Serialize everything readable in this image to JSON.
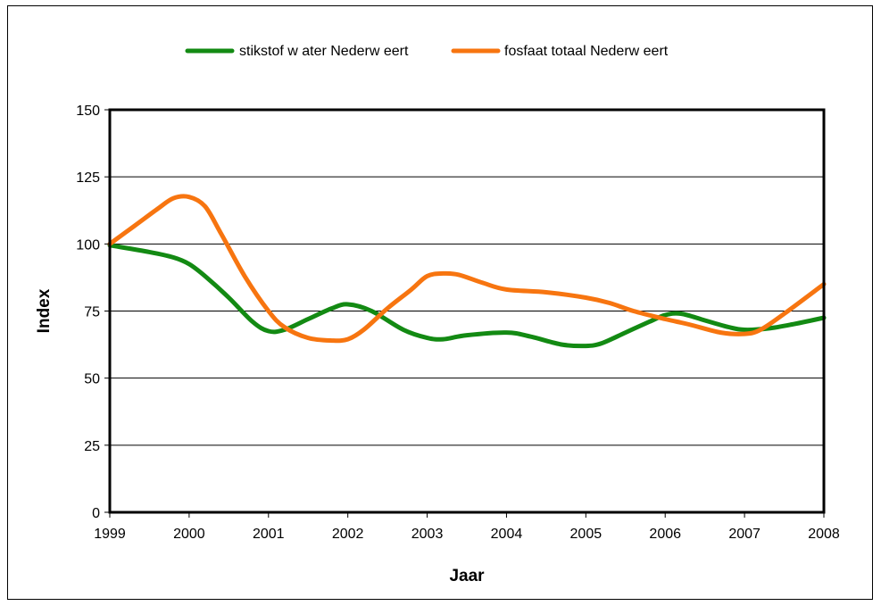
{
  "chart_data": {
    "type": "line",
    "xlabel": "Jaar",
    "ylabel": "Index",
    "xlim": [
      1999,
      2008
    ],
    "ylim": [
      0,
      150
    ],
    "xticks": [
      "1999",
      "2000",
      "2001",
      "2002",
      "2003",
      "2004",
      "2005",
      "2006",
      "2007",
      "2008"
    ],
    "yticks": [
      "0",
      "25",
      "50",
      "75",
      "100",
      "125",
      "150"
    ],
    "grid": "horizontal",
    "legend_position": "top",
    "series": [
      {
        "name": "stikstof w ater Nederw eert",
        "color": "#138a13",
        "x": [
          1999,
          1999.5,
          1999.8,
          2000,
          2000.2,
          2000.5,
          2000.8,
          2001,
          2001.2,
          2001.5,
          2001.8,
          2002,
          2002.3,
          2002.7,
          2003,
          2003.2,
          2003.5,
          2004,
          2004.3,
          2004.7,
          2005,
          2005.2,
          2005.5,
          2005.8,
          2006,
          2006.2,
          2006.5,
          2006.8,
          2007,
          2007.3,
          2007.6,
          2008
        ],
        "values": [
          99.5,
          97,
          95,
          92.5,
          88,
          80,
          71,
          67.5,
          68,
          72,
          76,
          77.5,
          75,
          68,
          65,
          64.5,
          66,
          67,
          65.5,
          62.5,
          62,
          63,
          67,
          71,
          73.5,
          74,
          71.5,
          69,
          68,
          68.5,
          70,
          72.5
        ]
      },
      {
        "name": "fosfaat totaal Nederw eert",
        "color": "#f77510",
        "x": [
          1999,
          1999.3,
          1999.6,
          1999.8,
          2000,
          2000.2,
          2000.4,
          2000.7,
          2001,
          2001.2,
          2001.5,
          2001.8,
          2002,
          2002.2,
          2002.5,
          2002.8,
          2003,
          2003.2,
          2003.4,
          2003.7,
          2004,
          2004.5,
          2005,
          2005.3,
          2005.6,
          2006,
          2006.3,
          2006.7,
          2007,
          2007.2,
          2007.5,
          2008
        ],
        "values": [
          100,
          106.5,
          113,
          117,
          117.5,
          114,
          104,
          88,
          75,
          69,
          65,
          64,
          64.5,
          68,
          76,
          83,
          88,
          89,
          88.5,
          85.5,
          83,
          82,
          80,
          78,
          75,
          72,
          70,
          67,
          66.5,
          68,
          74,
          85
        ]
      }
    ]
  }
}
